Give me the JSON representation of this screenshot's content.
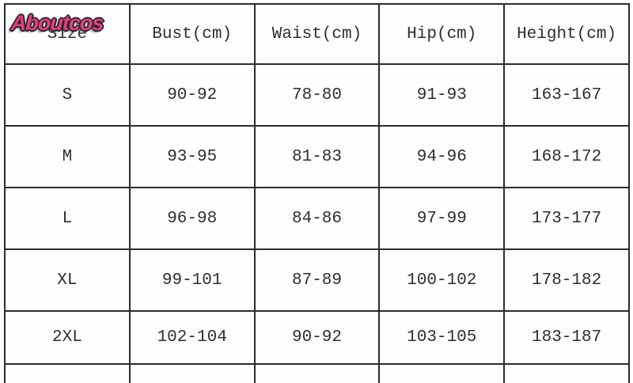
{
  "logo": {
    "text": "Aboutcos"
  },
  "colors": {
    "logo_pink": "#e8416f",
    "logo_outline": "#23233d",
    "table_border": "#2b2b2b",
    "text": "#2e2e2e",
    "background": "#ffffff"
  },
  "size_chart": {
    "headers": [
      "Size",
      "Bust(cm)",
      "Waist(cm)",
      "Hip(cm)",
      "Height(cm)"
    ],
    "rows": [
      [
        "S",
        "90-92",
        "78-80",
        "91-93",
        "163-167"
      ],
      [
        "M",
        "93-95",
        "81-83",
        "94-96",
        "168-172"
      ],
      [
        "L",
        "96-98",
        "84-86",
        "97-99",
        "173-177"
      ],
      [
        "XL",
        "99-101",
        "87-89",
        "100-102",
        "178-182"
      ],
      [
        "2XL",
        "102-104",
        "90-92",
        "103-105",
        "183-187"
      ]
    ]
  },
  "chart_data": {
    "type": "table",
    "columns": [
      "Size",
      "Bust(cm)",
      "Waist(cm)",
      "Hip(cm)",
      "Height(cm)"
    ],
    "rows": [
      [
        "S",
        "90-92",
        "78-80",
        "91-93",
        "163-167"
      ],
      [
        "M",
        "93-95",
        "81-83",
        "94-96",
        "168-172"
      ],
      [
        "L",
        "96-98",
        "84-86",
        "97-99",
        "173-177"
      ],
      [
        "XL",
        "99-101",
        "87-89",
        "100-102",
        "178-182"
      ],
      [
        "2XL",
        "102-104",
        "90-92",
        "103-105",
        "183-187"
      ]
    ]
  }
}
